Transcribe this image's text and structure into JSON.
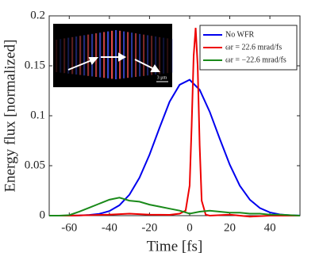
{
  "chart_data": {
    "type": "line",
    "xlabel": "Time [fs]",
    "ylabel": "Energy flux [normalized]",
    "xlim": [
      -70,
      55
    ],
    "xticks": [
      -60,
      -40,
      -20,
      0,
      20,
      40
    ],
    "ylim": [
      0,
      0.2
    ],
    "yticks": [
      0,
      0.05,
      0.1,
      0.15,
      0.2
    ],
    "legend": "upper right",
    "inset_scale_label": "3 μm",
    "series": [
      {
        "name": "No WFR",
        "color": "#0000ee",
        "x": [
          -70,
          -65,
          -60,
          -55,
          -50,
          -45,
          -40,
          -35,
          -30,
          -25,
          -20,
          -15,
          -10,
          -5,
          0,
          5,
          10,
          15,
          20,
          25,
          30,
          35,
          40,
          45,
          50,
          55
        ],
        "values": [
          0,
          0,
          0,
          0.0002,
          0.0007,
          0.0018,
          0.0046,
          0.0104,
          0.021,
          0.038,
          0.061,
          0.088,
          0.114,
          0.131,
          0.136,
          0.126,
          0.104,
          0.077,
          0.051,
          0.03,
          0.016,
          0.0076,
          0.0032,
          0.0012,
          0.0004,
          0.0001
        ]
      },
      {
        "name": "ωr = 22.6 mrad/fs",
        "color": "#ee0000",
        "x": [
          -70,
          -60,
          -50,
          -40,
          -30,
          -20,
          -10,
          -5,
          -2,
          0,
          1,
          2,
          3,
          4,
          5,
          6,
          8,
          10,
          20,
          30,
          40,
          55
        ],
        "values": [
          0,
          0,
          0.0005,
          0.001,
          0.002,
          0.001,
          0.0008,
          0.002,
          0.005,
          0.03,
          0.09,
          0.16,
          0.188,
          0.15,
          0.07,
          0.015,
          0.001,
          0,
          0.001,
          -0.001,
          0,
          0
        ]
      },
      {
        "name": "ωr = −22.6 mrad/fs",
        "color": "#1a8a1a",
        "x": [
          -70,
          -65,
          -60,
          -55,
          -50,
          -45,
          -40,
          -35,
          -30,
          -25,
          -20,
          -15,
          -10,
          -5,
          0,
          5,
          10,
          15,
          20,
          25,
          30,
          35,
          40,
          45,
          50,
          55
        ],
        "values": [
          0,
          0,
          0.0005,
          0.004,
          0.008,
          0.012,
          0.016,
          0.018,
          0.015,
          0.014,
          0.011,
          0.009,
          0.007,
          0.005,
          0.002,
          0.004,
          0.005,
          0.004,
          0.003,
          0.003,
          0.002,
          0.002,
          0.001,
          0.001,
          0.0005,
          0
        ]
      }
    ]
  }
}
